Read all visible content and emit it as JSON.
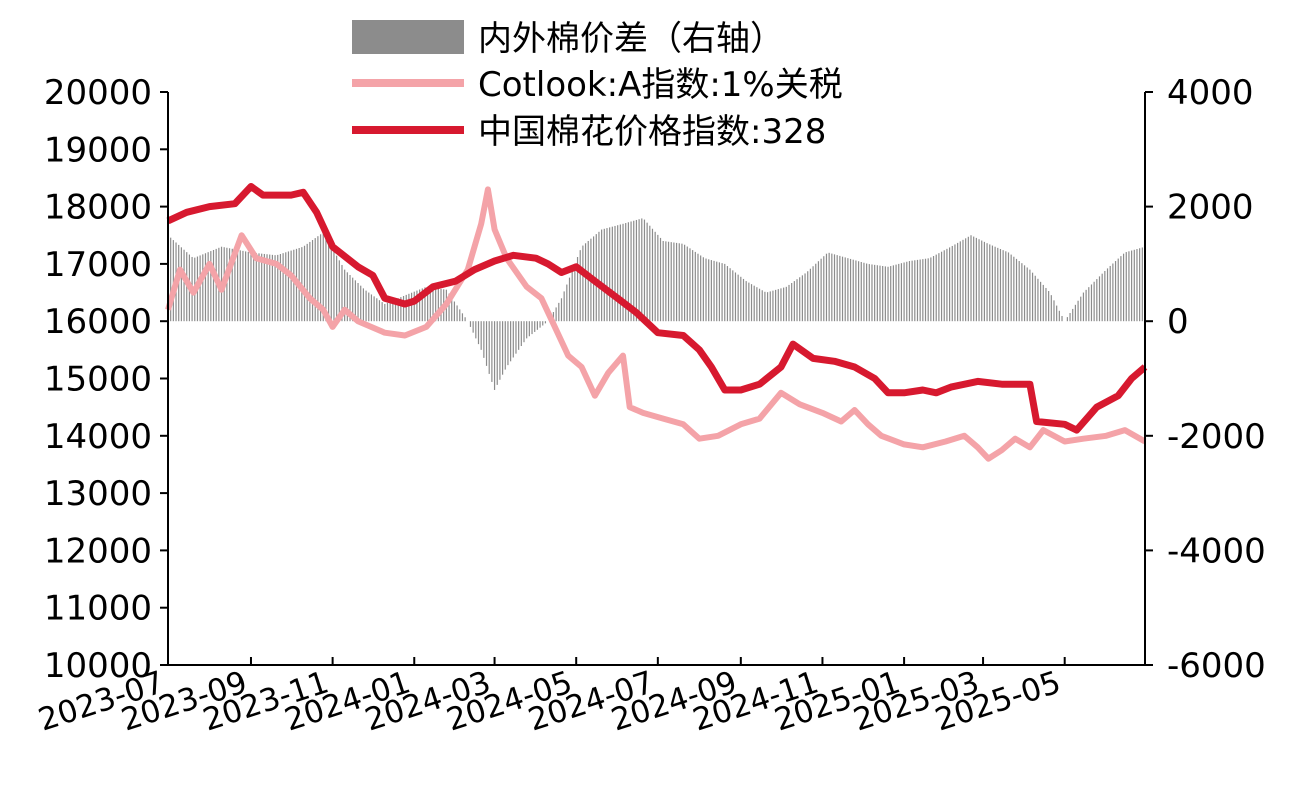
{
  "chart_data": {
    "type": "line",
    "x_type": "date",
    "x_ticks": [
      "2023-07",
      "2023-09",
      "2023-11",
      "2024-01",
      "2024-03",
      "2024-05",
      "2024-07",
      "2024-09",
      "2024-11",
      "2025-01",
      "2025-03",
      "2025-05"
    ],
    "x_range": [
      "2023-07-01",
      "2025-06-30"
    ],
    "y_left": {
      "min": 10000,
      "max": 20000,
      "step": 1000,
      "ticks": [
        "10000",
        "11000",
        "12000",
        "13000",
        "14000",
        "15000",
        "16000",
        "17000",
        "18000",
        "19000",
        "20000"
      ]
    },
    "y_right": {
      "min": -6000,
      "max": 4000,
      "step": 2000,
      "label": "",
      "ticks": [
        "-6000",
        "-4000",
        "-2000",
        "0",
        "2000",
        "4000"
      ]
    },
    "legend": [
      {
        "name": "内外棉价差（右轴）",
        "type": "bar",
        "color": "#8c8c8c"
      },
      {
        "name": "Cotlook:A指数:1%关税",
        "type": "line",
        "color": "#f4a3a8"
      },
      {
        "name": "中国棉花价格指数:328",
        "type": "line",
        "color": "#d7192f"
      }
    ],
    "series": [
      {
        "name": "中国棉花价格指数:328",
        "axis": "left",
        "color": "#d7192f",
        "points": [
          [
            "2023-07-01",
            17750
          ],
          [
            "2023-07-15",
            17900
          ],
          [
            "2023-08-01",
            18000
          ],
          [
            "2023-08-20",
            18050
          ],
          [
            "2023-09-01",
            18350
          ],
          [
            "2023-09-10",
            18200
          ],
          [
            "2023-10-01",
            18200
          ],
          [
            "2023-10-10",
            18250
          ],
          [
            "2023-10-20",
            17900
          ],
          [
            "2023-11-01",
            17300
          ],
          [
            "2023-11-20",
            16950
          ],
          [
            "2023-12-01",
            16800
          ],
          [
            "2023-12-10",
            16400
          ],
          [
            "2023-12-25",
            16300
          ],
          [
            "2024-01-01",
            16350
          ],
          [
            "2024-01-15",
            16600
          ],
          [
            "2024-02-01",
            16700
          ],
          [
            "2024-02-15",
            16900
          ],
          [
            "2024-03-01",
            17050
          ],
          [
            "2024-03-15",
            17150
          ],
          [
            "2024-04-01",
            17100
          ],
          [
            "2024-04-10",
            17000
          ],
          [
            "2024-04-20",
            16850
          ],
          [
            "2024-05-01",
            16950
          ],
          [
            "2024-05-15",
            16700
          ],
          [
            "2024-06-01",
            16400
          ],
          [
            "2024-06-15",
            16150
          ],
          [
            "2024-07-01",
            15800
          ],
          [
            "2024-07-20",
            15750
          ],
          [
            "2024-08-01",
            15500
          ],
          [
            "2024-08-10",
            15200
          ],
          [
            "2024-08-20",
            14800
          ],
          [
            "2024-09-01",
            14800
          ],
          [
            "2024-09-15",
            14900
          ],
          [
            "2024-10-01",
            15200
          ],
          [
            "2024-10-10",
            15600
          ],
          [
            "2024-10-25",
            15350
          ],
          [
            "2024-11-10",
            15300
          ],
          [
            "2024-11-25",
            15200
          ],
          [
            "2024-12-10",
            15000
          ],
          [
            "2024-12-20",
            14750
          ],
          [
            "2025-01-01",
            14750
          ],
          [
            "2025-01-15",
            14800
          ],
          [
            "2025-01-25",
            14750
          ],
          [
            "2025-02-05",
            14850
          ],
          [
            "2025-02-25",
            14950
          ],
          [
            "2025-03-15",
            14900
          ],
          [
            "2025-04-05",
            14900
          ],
          [
            "2025-04-10",
            14250
          ],
          [
            "2025-05-01",
            14200
          ],
          [
            "2025-05-10",
            14100
          ],
          [
            "2025-05-25",
            14500
          ],
          [
            "2025-06-10",
            14700
          ],
          [
            "2025-06-20",
            15000
          ],
          [
            "2025-06-30",
            15200
          ]
        ]
      },
      {
        "name": "Cotlook:A指数:1%关税",
        "axis": "left",
        "color": "#f4a3a8",
        "points": [
          [
            "2023-07-01",
            16200
          ],
          [
            "2023-07-10",
            16900
          ],
          [
            "2023-07-20",
            16500
          ],
          [
            "2023-08-01",
            17000
          ],
          [
            "2023-08-10",
            16550
          ],
          [
            "2023-08-25",
            17500
          ],
          [
            "2023-09-05",
            17100
          ],
          [
            "2023-09-20",
            17000
          ],
          [
            "2023-10-01",
            16800
          ],
          [
            "2023-10-15",
            16400
          ],
          [
            "2023-10-25",
            16200
          ],
          [
            "2023-11-01",
            15900
          ],
          [
            "2023-11-10",
            16200
          ],
          [
            "2023-11-20",
            16000
          ],
          [
            "2023-12-10",
            15800
          ],
          [
            "2023-12-25",
            15750
          ],
          [
            "2024-01-10",
            15900
          ],
          [
            "2024-01-25",
            16300
          ],
          [
            "2024-02-10",
            16900
          ],
          [
            "2024-02-20",
            17700
          ],
          [
            "2024-02-25",
            18300
          ],
          [
            "2024-03-01",
            17600
          ],
          [
            "2024-03-10",
            17100
          ],
          [
            "2024-03-25",
            16600
          ],
          [
            "2024-04-05",
            16400
          ],
          [
            "2024-04-15",
            15900
          ],
          [
            "2024-04-25",
            15400
          ],
          [
            "2024-05-05",
            15200
          ],
          [
            "2024-05-15",
            14700
          ],
          [
            "2024-05-25",
            15100
          ],
          [
            "2024-06-05",
            15400
          ],
          [
            "2024-06-10",
            14500
          ],
          [
            "2024-06-20",
            14400
          ],
          [
            "2024-07-05",
            14300
          ],
          [
            "2024-07-20",
            14200
          ],
          [
            "2024-08-01",
            13950
          ],
          [
            "2024-08-15",
            14000
          ],
          [
            "2024-09-01",
            14200
          ],
          [
            "2024-09-15",
            14300
          ],
          [
            "2024-10-01",
            14750
          ],
          [
            "2024-10-15",
            14550
          ],
          [
            "2024-11-01",
            14400
          ],
          [
            "2024-11-15",
            14250
          ],
          [
            "2024-11-25",
            14450
          ],
          [
            "2024-12-05",
            14200
          ],
          [
            "2024-12-15",
            14000
          ],
          [
            "2025-01-01",
            13850
          ],
          [
            "2025-01-15",
            13800
          ],
          [
            "2025-02-01",
            13900
          ],
          [
            "2025-02-15",
            14000
          ],
          [
            "2025-02-25",
            13800
          ],
          [
            "2025-03-05",
            13600
          ],
          [
            "2025-03-15",
            13750
          ],
          [
            "2025-03-25",
            13950
          ],
          [
            "2025-04-05",
            13800
          ],
          [
            "2025-04-15",
            14100
          ],
          [
            "2025-05-01",
            13900
          ],
          [
            "2025-05-15",
            13950
          ],
          [
            "2025-06-01",
            14000
          ],
          [
            "2025-06-15",
            14100
          ],
          [
            "2025-06-30",
            13900
          ]
        ]
      },
      {
        "name": "内外棉价差（右轴）",
        "axis": "right",
        "color": "#8c8c8c",
        "type": "bar",
        "points": [
          [
            "2023-07-01",
            1500
          ],
          [
            "2023-07-20",
            1100
          ],
          [
            "2023-08-10",
            1300
          ],
          [
            "2023-09-01",
            1200
          ],
          [
            "2023-09-20",
            1150
          ],
          [
            "2023-10-10",
            1300
          ],
          [
            "2023-10-25",
            1550
          ],
          [
            "2023-11-10",
            900
          ],
          [
            "2023-11-25",
            550
          ],
          [
            "2023-12-10",
            300
          ],
          [
            "2023-12-25",
            450
          ],
          [
            "2024-01-10",
            600
          ],
          [
            "2024-01-25",
            550
          ],
          [
            "2024-02-10",
            0
          ],
          [
            "2024-02-20",
            -500
          ],
          [
            "2024-03-01",
            -1200
          ],
          [
            "2024-03-10",
            -800
          ],
          [
            "2024-03-25",
            -300
          ],
          [
            "2024-04-10",
            0
          ],
          [
            "2024-04-20",
            400
          ],
          [
            "2024-05-05",
            1300
          ],
          [
            "2024-05-20",
            1600
          ],
          [
            "2024-06-05",
            1700
          ],
          [
            "2024-06-20",
            1800
          ],
          [
            "2024-07-05",
            1400
          ],
          [
            "2024-07-20",
            1350
          ],
          [
            "2024-08-05",
            1100
          ],
          [
            "2024-08-20",
            1000
          ],
          [
            "2024-09-05",
            700
          ],
          [
            "2024-09-20",
            500
          ],
          [
            "2024-10-05",
            600
          ],
          [
            "2024-10-20",
            850
          ],
          [
            "2024-11-05",
            1200
          ],
          [
            "2024-11-20",
            1100
          ],
          [
            "2024-12-05",
            1000
          ],
          [
            "2024-12-20",
            950
          ],
          [
            "2025-01-05",
            1050
          ],
          [
            "2025-01-20",
            1100
          ],
          [
            "2025-02-05",
            1300
          ],
          [
            "2025-02-20",
            1500
          ],
          [
            "2025-03-05",
            1350
          ],
          [
            "2025-03-20",
            1200
          ],
          [
            "2025-04-05",
            900
          ],
          [
            "2025-04-20",
            500
          ],
          [
            "2025-05-01",
            0
          ],
          [
            "2025-05-15",
            500
          ],
          [
            "2025-06-01",
            900
          ],
          [
            "2025-06-15",
            1200
          ],
          [
            "2025-06-30",
            1300
          ]
        ]
      }
    ]
  }
}
